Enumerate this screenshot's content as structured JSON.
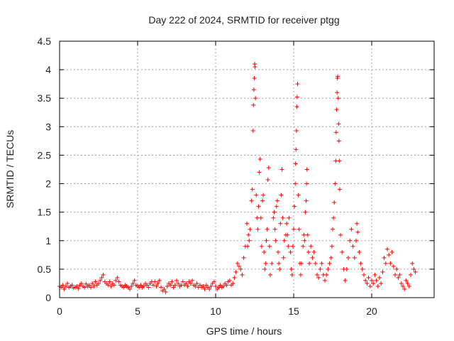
{
  "chart_data": {
    "type": "scatter",
    "title": "Day 222 of 2024, SRMTID for receiver ptgg",
    "xlabel": "GPS time / hours",
    "ylabel": "SRMTID / TECUs",
    "xlim": [
      0,
      24
    ],
    "ylim": [
      0,
      4.5
    ],
    "xticks": [
      0,
      5,
      10,
      15,
      20
    ],
    "yticks": [
      0,
      0.5,
      1,
      1.5,
      2,
      2.5,
      3,
      3.5,
      4,
      4.5
    ],
    "ytick_labels": [
      "0",
      "0.5",
      "1",
      "1.5",
      "2",
      "2.5",
      "3",
      "3.5",
      "4",
      "4.5"
    ],
    "grid": true,
    "marker": "+",
    "color": "#ff0000",
    "series": [
      {
        "name": "SRMTID",
        "points": [
          [
            0.0,
            0.2
          ],
          [
            0.1,
            0.18
          ],
          [
            0.2,
            0.22
          ],
          [
            0.3,
            0.15
          ],
          [
            0.4,
            0.2
          ],
          [
            0.5,
            0.25
          ],
          [
            0.6,
            0.18
          ],
          [
            0.7,
            0.2
          ],
          [
            0.8,
            0.22
          ],
          [
            0.9,
            0.17
          ],
          [
            1.0,
            0.18
          ],
          [
            1.1,
            0.2
          ],
          [
            1.2,
            0.16
          ],
          [
            1.3,
            0.22
          ],
          [
            1.4,
            0.25
          ],
          [
            1.5,
            0.2
          ],
          [
            1.6,
            0.18
          ],
          [
            1.7,
            0.24
          ],
          [
            1.8,
            0.2
          ],
          [
            1.9,
            0.22
          ],
          [
            2.0,
            0.18
          ],
          [
            2.1,
            0.25
          ],
          [
            2.2,
            0.2
          ],
          [
            2.3,
            0.28
          ],
          [
            2.4,
            0.22
          ],
          [
            2.5,
            0.25
          ],
          [
            2.6,
            0.3
          ],
          [
            2.7,
            0.35
          ],
          [
            2.8,
            0.4
          ],
          [
            2.9,
            0.28
          ],
          [
            3.0,
            0.25
          ],
          [
            3.1,
            0.22
          ],
          [
            3.2,
            0.28
          ],
          [
            3.3,
            0.2
          ],
          [
            3.4,
            0.25
          ],
          [
            3.5,
            0.22
          ],
          [
            3.6,
            0.3
          ],
          [
            3.7,
            0.35
          ],
          [
            3.8,
            0.28
          ],
          [
            3.9,
            0.22
          ],
          [
            4.0,
            0.2
          ],
          [
            4.1,
            0.18
          ],
          [
            4.2,
            0.22
          ],
          [
            4.3,
            0.2
          ],
          [
            4.4,
            0.18
          ],
          [
            4.5,
            0.15
          ],
          [
            4.6,
            0.2
          ],
          [
            4.7,
            0.25
          ],
          [
            4.8,
            0.3
          ],
          [
            4.9,
            0.22
          ],
          [
            5.0,
            0.2
          ],
          [
            5.1,
            0.18
          ],
          [
            5.2,
            0.22
          ],
          [
            5.3,
            0.18
          ],
          [
            5.4,
            0.2
          ],
          [
            5.5,
            0.25
          ],
          [
            5.6,
            0.22
          ],
          [
            5.7,
            0.18
          ],
          [
            5.8,
            0.25
          ],
          [
            5.9,
            0.28
          ],
          [
            6.0,
            0.22
          ],
          [
            6.1,
            0.28
          ],
          [
            6.2,
            0.2
          ],
          [
            6.3,
            0.25
          ],
          [
            6.4,
            0.3
          ],
          [
            6.5,
            0.18
          ],
          [
            6.6,
            0.12
          ],
          [
            6.7,
            0.15
          ],
          [
            6.8,
            0.1
          ],
          [
            6.9,
            0.2
          ],
          [
            7.0,
            0.25
          ],
          [
            7.1,
            0.22
          ],
          [
            7.2,
            0.28
          ],
          [
            7.3,
            0.18
          ],
          [
            7.4,
            0.22
          ],
          [
            7.5,
            0.3
          ],
          [
            7.6,
            0.25
          ],
          [
            7.7,
            0.2
          ],
          [
            7.8,
            0.22
          ],
          [
            7.9,
            0.28
          ],
          [
            8.0,
            0.22
          ],
          [
            8.1,
            0.25
          ],
          [
            8.2,
            0.2
          ],
          [
            8.3,
            0.28
          ],
          [
            8.4,
            0.25
          ],
          [
            8.5,
            0.3
          ],
          [
            8.6,
            0.22
          ],
          [
            8.7,
            0.2
          ],
          [
            8.8,
            0.25
          ],
          [
            8.9,
            0.18
          ],
          [
            9.0,
            0.22
          ],
          [
            9.1,
            0.18
          ],
          [
            9.2,
            0.2
          ],
          [
            9.3,
            0.15
          ],
          [
            9.4,
            0.22
          ],
          [
            9.5,
            0.18
          ],
          [
            9.6,
            0.15
          ],
          [
            9.7,
            0.2
          ],
          [
            9.8,
            0.25
          ],
          [
            9.9,
            0.28
          ],
          [
            10.0,
            0.2
          ],
          [
            10.1,
            0.15
          ],
          [
            10.2,
            0.18
          ],
          [
            10.3,
            0.22
          ],
          [
            10.4,
            0.18
          ],
          [
            10.5,
            0.2
          ],
          [
            10.6,
            0.25
          ],
          [
            10.7,
            0.22
          ],
          [
            10.8,
            0.28
          ],
          [
            10.9,
            0.3
          ],
          [
            11.0,
            0.22
          ],
          [
            11.1,
            0.25
          ],
          [
            11.2,
            0.35
          ],
          [
            11.3,
            0.45
          ],
          [
            11.4,
            0.6
          ],
          [
            11.5,
            0.55
          ],
          [
            11.6,
            0.5
          ],
          [
            11.7,
            0.4
          ],
          [
            11.8,
            0.7
          ],
          [
            11.9,
            0.9
          ],
          [
            12.0,
            1.3
          ],
          [
            12.05,
            0.9
          ],
          [
            12.1,
            1.1
          ],
          [
            12.15,
            1.0
          ],
          [
            12.2,
            1.2
          ],
          [
            12.3,
            1.7
          ],
          [
            12.35,
            1.9
          ],
          [
            12.4,
            2.93
          ],
          [
            12.42,
            3.38
          ],
          [
            12.45,
            3.65
          ],
          [
            12.48,
            3.85
          ],
          [
            12.5,
            4.1
          ],
          [
            12.52,
            4.05
          ],
          [
            12.55,
            3.5
          ],
          [
            12.6,
            1.8
          ],
          [
            12.65,
            1.4
          ],
          [
            12.7,
            1.2
          ],
          [
            12.75,
            1.6
          ],
          [
            12.8,
            2.2
          ],
          [
            12.85,
            2.43
          ],
          [
            12.9,
            1.4
          ],
          [
            12.95,
            0.9
          ],
          [
            13.0,
            1.7
          ],
          [
            13.05,
            1.8
          ],
          [
            13.1,
            0.8
          ],
          [
            13.15,
            0.5
          ],
          [
            13.2,
            0.6
          ],
          [
            13.25,
            1.0
          ],
          [
            13.3,
            1.2
          ],
          [
            13.35,
            2.07
          ],
          [
            13.4,
            2.28
          ],
          [
            13.45,
            0.9
          ],
          [
            13.5,
            0.4
          ],
          [
            13.6,
            0.6
          ],
          [
            13.7,
            1.4
          ],
          [
            13.75,
            1.5
          ],
          [
            13.8,
            1.2
          ],
          [
            13.85,
            1.0
          ],
          [
            13.9,
            1.6
          ],
          [
            13.95,
            1.7
          ],
          [
            14.0,
            0.8
          ],
          [
            14.05,
            0.6
          ],
          [
            14.1,
            0.5
          ],
          [
            14.15,
            1.3
          ],
          [
            14.2,
            1.8
          ],
          [
            14.25,
            2.25
          ],
          [
            14.3,
            1.4
          ],
          [
            14.35,
            0.7
          ],
          [
            14.4,
            1.0
          ],
          [
            14.5,
            1.1
          ],
          [
            14.55,
            1.3
          ],
          [
            14.6,
            1.1
          ],
          [
            14.65,
            0.9
          ],
          [
            14.7,
            1.4
          ],
          [
            14.8,
            0.8
          ],
          [
            14.85,
            0.5
          ],
          [
            14.9,
            0.4
          ],
          [
            14.95,
            0.9
          ],
          [
            15.0,
            1.2
          ],
          [
            15.05,
            1.6
          ],
          [
            15.1,
            2.0
          ],
          [
            15.12,
            2.35
          ],
          [
            15.15,
            2.6
          ],
          [
            15.18,
            2.93
          ],
          [
            15.2,
            3.35
          ],
          [
            15.22,
            3.52
          ],
          [
            15.25,
            3.75
          ],
          [
            15.3,
            1.8
          ],
          [
            15.35,
            1.2
          ],
          [
            15.4,
            0.6
          ],
          [
            15.45,
            0.4
          ],
          [
            15.5,
            0.6
          ],
          [
            15.6,
            0.9
          ],
          [
            15.65,
            1.1
          ],
          [
            15.7,
            1.0
          ],
          [
            15.75,
            1.5
          ],
          [
            15.8,
            1.7
          ],
          [
            15.82,
            2.0
          ],
          [
            15.85,
            2.25
          ],
          [
            15.9,
            1.1
          ],
          [
            15.95,
            0.8
          ],
          [
            16.0,
            0.6
          ],
          [
            16.1,
            0.9
          ],
          [
            16.2,
            0.7
          ],
          [
            16.3,
            0.8
          ],
          [
            16.4,
            0.6
          ],
          [
            16.5,
            0.4
          ],
          [
            16.6,
            0.35
          ],
          [
            16.7,
            0.5
          ],
          [
            16.8,
            0.6
          ],
          [
            16.9,
            0.4
          ],
          [
            17.0,
            0.3
          ],
          [
            17.1,
            0.4
          ],
          [
            17.2,
            0.5
          ],
          [
            17.3,
            0.6
          ],
          [
            17.4,
            0.7
          ],
          [
            17.45,
            0.9
          ],
          [
            17.5,
            1.2
          ],
          [
            17.55,
            1.4
          ],
          [
            17.6,
            1.67
          ],
          [
            17.65,
            2.0
          ],
          [
            17.7,
            2.4
          ],
          [
            17.72,
            2.9
          ],
          [
            17.75,
            3.3
          ],
          [
            17.78,
            3.6
          ],
          [
            17.8,
            3.85
          ],
          [
            17.82,
            3.88
          ],
          [
            17.85,
            3.5
          ],
          [
            17.88,
            3.05
          ],
          [
            17.9,
            2.75
          ],
          [
            17.92,
            2.4
          ],
          [
            17.95,
            1.9
          ],
          [
            18.0,
            1.1
          ],
          [
            18.1,
            0.8
          ],
          [
            18.2,
            0.5
          ],
          [
            18.3,
            0.3
          ],
          [
            18.4,
            0.5
          ],
          [
            18.5,
            0.7
          ],
          [
            18.6,
            1.0
          ],
          [
            18.7,
            1.2
          ],
          [
            18.8,
            0.9
          ],
          [
            18.9,
            0.7
          ],
          [
            19.0,
            1.0
          ],
          [
            19.05,
            1.3
          ],
          [
            19.1,
            1.15
          ],
          [
            19.2,
            0.8
          ],
          [
            19.3,
            0.6
          ],
          [
            19.4,
            0.5
          ],
          [
            19.5,
            0.4
          ],
          [
            19.6,
            0.3
          ],
          [
            19.7,
            0.25
          ],
          [
            19.8,
            0.35
          ],
          [
            19.9,
            0.2
          ],
          [
            20.0,
            0.3
          ],
          [
            20.1,
            0.25
          ],
          [
            20.2,
            0.4
          ],
          [
            20.3,
            0.3
          ],
          [
            20.4,
            0.2
          ],
          [
            20.5,
            0.35
          ],
          [
            20.6,
            0.25
          ],
          [
            20.7,
            0.45
          ],
          [
            20.8,
            0.7
          ],
          [
            20.9,
            0.6
          ],
          [
            21.0,
            0.85
          ],
          [
            21.1,
            0.75
          ],
          [
            21.2,
            0.6
          ],
          [
            21.3,
            0.8
          ],
          [
            21.4,
            0.55
          ],
          [
            21.5,
            0.4
          ],
          [
            21.6,
            0.5
          ],
          [
            21.7,
            0.35
          ],
          [
            21.8,
            0.4
          ],
          [
            21.9,
            0.25
          ],
          [
            22.0,
            0.2
          ],
          [
            22.1,
            0.15
          ],
          [
            22.2,
            0.3
          ],
          [
            22.3,
            0.25
          ],
          [
            22.4,
            0.2
          ],
          [
            22.5,
            0.4
          ],
          [
            22.6,
            0.6
          ],
          [
            22.7,
            0.5
          ],
          [
            22.8,
            0.45
          ]
        ]
      }
    ]
  }
}
